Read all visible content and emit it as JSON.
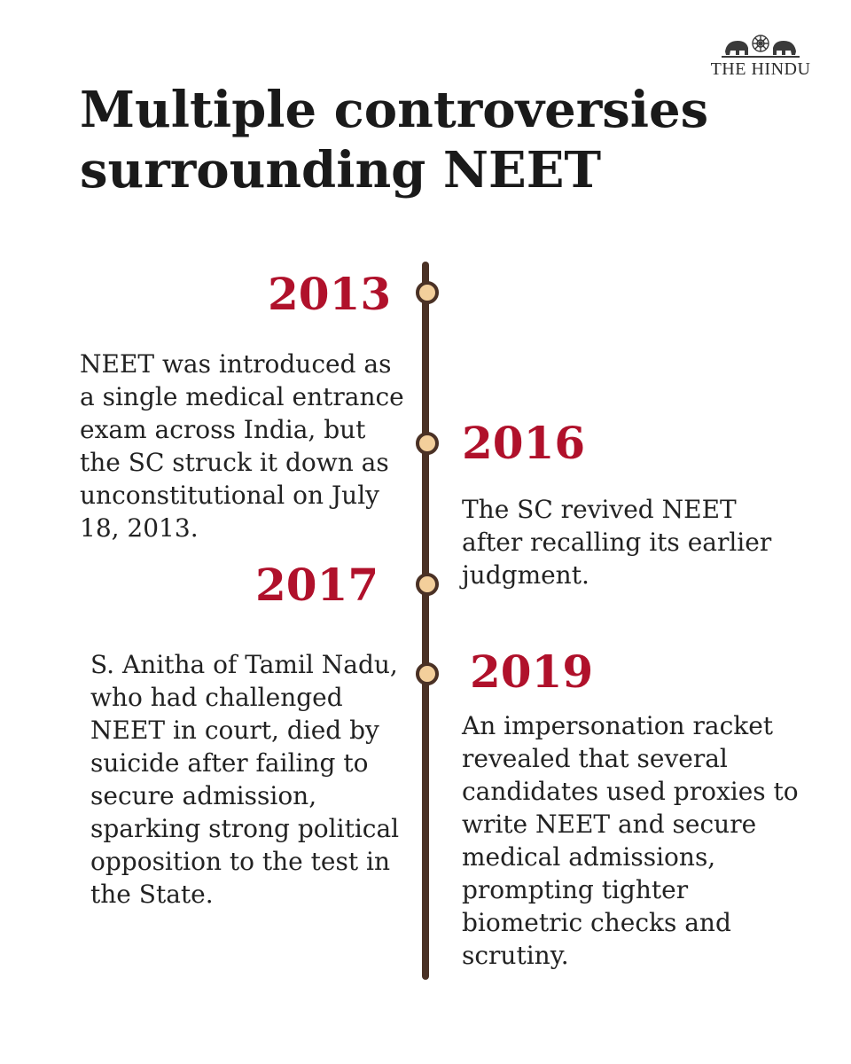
{
  "brand": {
    "name": "THE HINDU"
  },
  "title": "Multiple controversies surrounding NEET",
  "colors": {
    "year_accent": "#b0112b",
    "timeline_line": "#4a3125",
    "dot_fill": "#f3cf9b",
    "text": "#222222"
  },
  "events": [
    {
      "year": "2013",
      "description": "NEET was introduced as a single medical entrance exam across India, but the SC struck it down as unconstitutional on July 18, 2013."
    },
    {
      "year": "2016",
      "description": "The SC revived NEET after recalling its earlier judgment."
    },
    {
      "year": "2017",
      "description": "S. Anitha of Tamil Nadu, who had challenged NEET in court, died by suicide after failing to secure admission, sparking strong political opposition to the test in the State."
    },
    {
      "year": "2019",
      "description": "An impersonation racket revealed that several candidates used proxies to write NEET and secure medical admissions, prompting tighter biometric checks and scrutiny."
    }
  ]
}
